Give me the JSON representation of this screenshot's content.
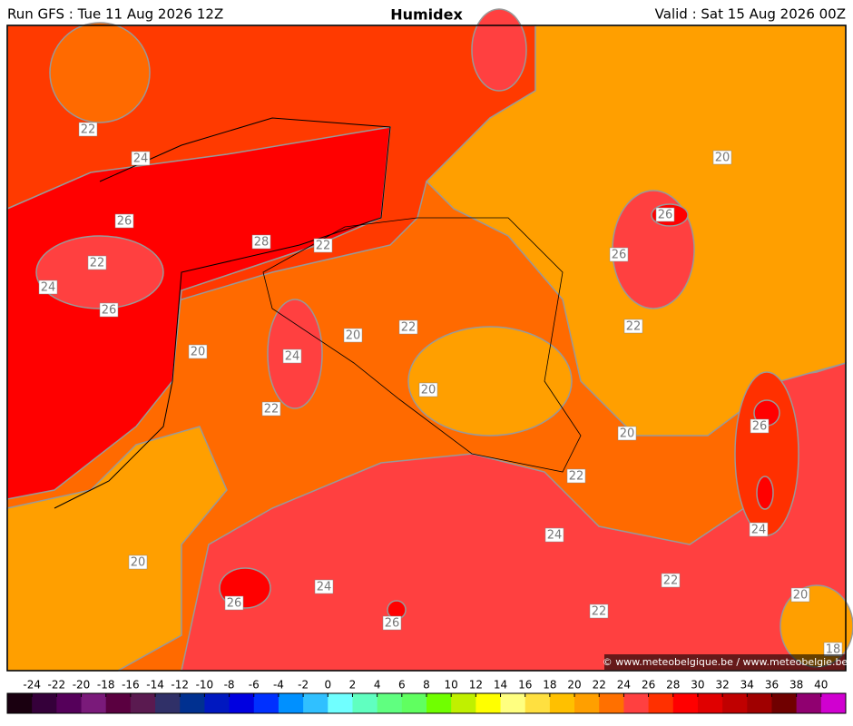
{
  "header": {
    "left": "Run GFS : Tue 11 Aug 2026 12Z",
    "title": "Humidex",
    "right": "Valid : Sat 15 Aug 2026 00Z"
  },
  "map": {
    "contour_labels": [
      22,
      24,
      26,
      28,
      22,
      22,
      24,
      26,
      20,
      24,
      20,
      22,
      22,
      20,
      20,
      26,
      26,
      22,
      20,
      26,
      22,
      24,
      24,
      20,
      24,
      26,
      22,
      22,
      26,
      20,
      18
    ],
    "copyright": "© www.meteobelgique.be / www.meteobelgie.be"
  },
  "colorbar": {
    "ticks": [
      -24,
      -22,
      -20,
      -18,
      -16,
      -14,
      -12,
      -10,
      -8,
      -6,
      -4,
      -2,
      0,
      2,
      4,
      6,
      8,
      10,
      12,
      14,
      16,
      18,
      20,
      22,
      24,
      26,
      28,
      30,
      32,
      34,
      36,
      38,
      40
    ],
    "colors": [
      "#1a0010",
      "#35003a",
      "#55005a",
      "#7a1a7a",
      "#5a0040",
      "#5a1a50",
      "#303068",
      "#003090",
      "#0018c0",
      "#0000e0",
      "#0030ff",
      "#0090ff",
      "#30c0ff",
      "#70ffff",
      "#60ffc0",
      "#60ff80",
      "#60ff60",
      "#70ff00",
      "#c0f000",
      "#ffff00",
      "#ffff80",
      "#ffe040",
      "#ffc000",
      "#ff9f00",
      "#ff7000",
      "#ff4040",
      "#ff3000",
      "#ff0000",
      "#e00000",
      "#c00000",
      "#a00000",
      "#700000",
      "#900070",
      "#d000d0"
    ]
  }
}
